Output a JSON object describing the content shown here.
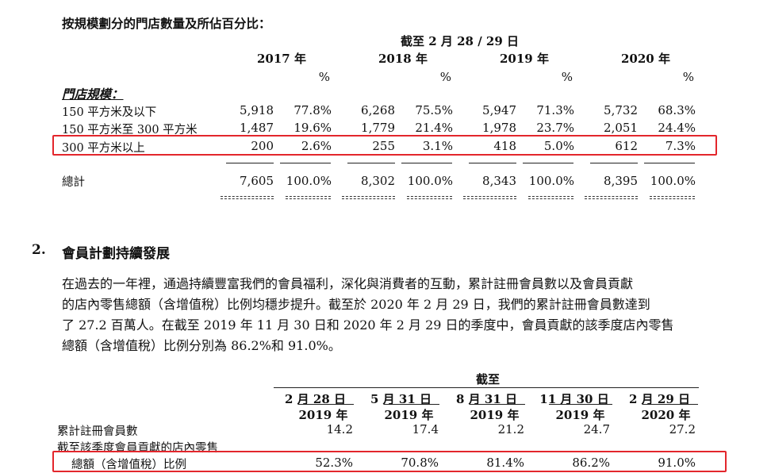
{
  "store_table": {
    "title": "按規模劃分的門店數量及所佔百分比：",
    "as_of": "截至 2 月 28 / 29 日",
    "years": [
      "2017 年",
      "2018 年",
      "2019 年",
      "2020 年"
    ],
    "pct_symbol": "%",
    "section_label": "門店規模：",
    "rows": [
      {
        "label": "150 平方米及以下",
        "values": [
          "5,918",
          "77.8%",
          "6,268",
          "75.5%",
          "5,947",
          "71.3%",
          "5,732",
          "68.3%"
        ]
      },
      {
        "label": "150 平方米至 300 平方米",
        "values": [
          "1,487",
          "19.6%",
          "1,779",
          "21.4%",
          "1,978",
          "23.7%",
          "2,051",
          "24.4%"
        ]
      },
      {
        "label": "300 平方米以上",
        "values": [
          "200",
          "2.6%",
          "255",
          "3.1%",
          "418",
          "5.0%",
          "612",
          "7.3%"
        ],
        "highlighted": true
      }
    ],
    "total": {
      "label": "總計",
      "values": [
        "7,605",
        "100.0%",
        "8,302",
        "100.0%",
        "8,343",
        "100.0%",
        "8,395",
        "100.0%"
      ]
    }
  },
  "section2": {
    "number": "2.",
    "title": "會員計劃持續發展",
    "paragraph": [
      "在過去的一年裡，通過持續豐富我們的會員福利，深化與消費者的互動，累計註冊會員數以及會員貢獻",
      "的店內零售總額（含增值稅）比例均穩步提升。截至於 2020 年 2 月 29 日，我們的累計註冊會員數達到",
      "了 27.2 百萬人。在截至 2019 年 11 月 30 日和 2020 年 2 月 29 日的季度中，會員貢獻的該季度店內零售",
      "總額（含增值稅）比例分別為 86.2%和 91.0%。"
    ]
  },
  "member_table": {
    "as_of": "截至",
    "columns": [
      {
        "date": "2 月 28 日",
        "year": "2019 年"
      },
      {
        "date": "5 月 31 日",
        "year": "2019 年"
      },
      {
        "date": "8 月 31 日",
        "year": "2019 年"
      },
      {
        "date": "11 月 30 日",
        "year": "2019 年"
      },
      {
        "date": "2 月 29 日",
        "year": "2020 年"
      }
    ],
    "rows": [
      {
        "label": "累計註冊會員數",
        "values": [
          "14.2",
          "17.4",
          "21.2",
          "24.7",
          "27.2"
        ]
      },
      {
        "label_line1": "截至該季度會員貢獻的店內零售",
        "label_line2": "總額（含增值稅）比例",
        "values": [
          "52.3%",
          "70.8%",
          "81.4%",
          "86.2%",
          "91.0%"
        ],
        "highlighted": true
      }
    ]
  },
  "colors": {
    "highlight_box": "#e3262c",
    "text": "#111111"
  }
}
